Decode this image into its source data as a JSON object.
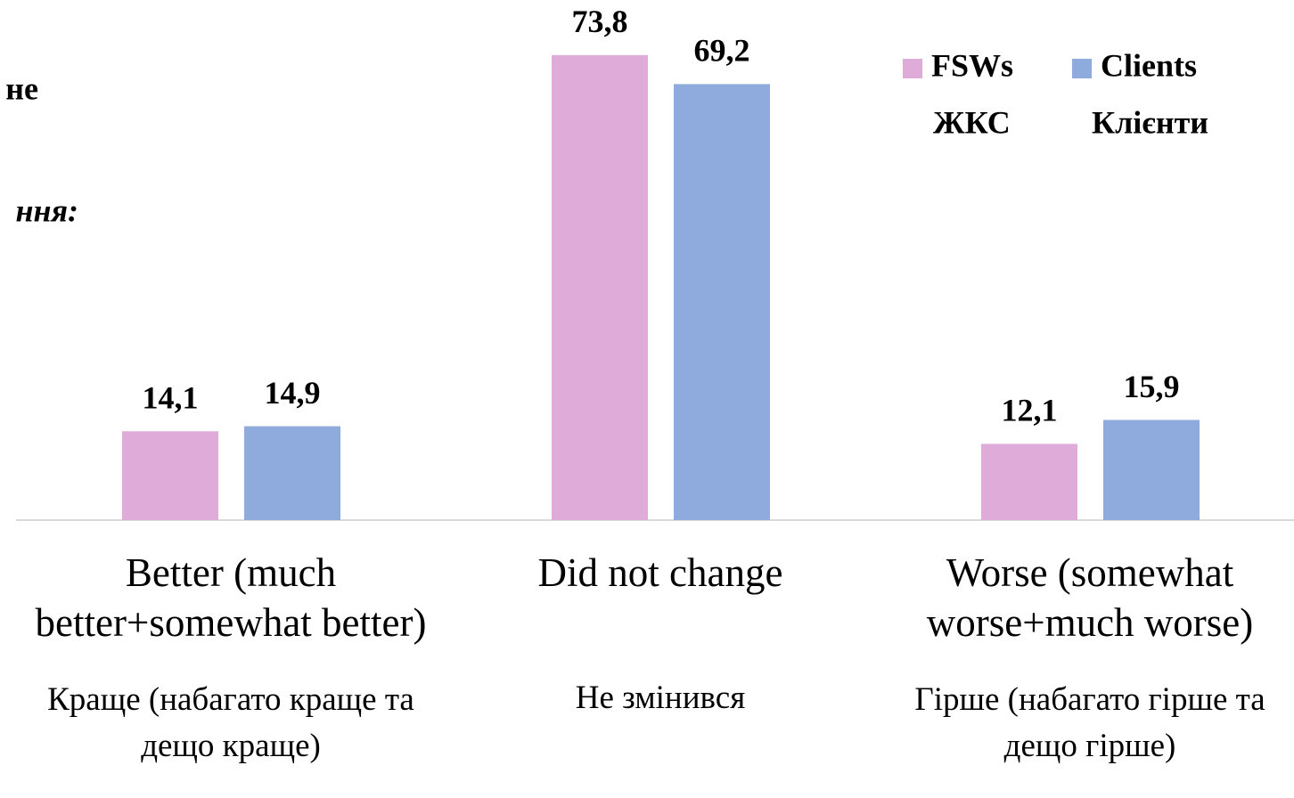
{
  "chart_data": {
    "type": "bar",
    "annotations": [
      "не",
      "ння:"
    ],
    "categories": [
      "Better (much better+somewhat better)",
      "Did not change",
      "Worse (somewhat worse+much worse)"
    ],
    "category_subtitles": [
      "Краще (набагато краще та дещо краще)",
      "Не змінився",
      "Гірше (набагато гірше та дещо гірше)"
    ],
    "series": [
      {
        "name": "FSWs",
        "label_uk": "ЖКС",
        "color": "#dfabd8",
        "values": [
          14.1,
          73.8,
          12.1
        ],
        "value_labels": [
          "14,1",
          "73,8",
          "12,1"
        ]
      },
      {
        "name": "Clients",
        "label_uk": "Клієнти",
        "color": "#8faadc",
        "values": [
          14.9,
          69.2,
          15.9
        ],
        "value_labels": [
          "14,9",
          "69,2",
          "15,9"
        ]
      }
    ],
    "ylim": [
      0,
      80
    ],
    "legend": "top-right"
  }
}
